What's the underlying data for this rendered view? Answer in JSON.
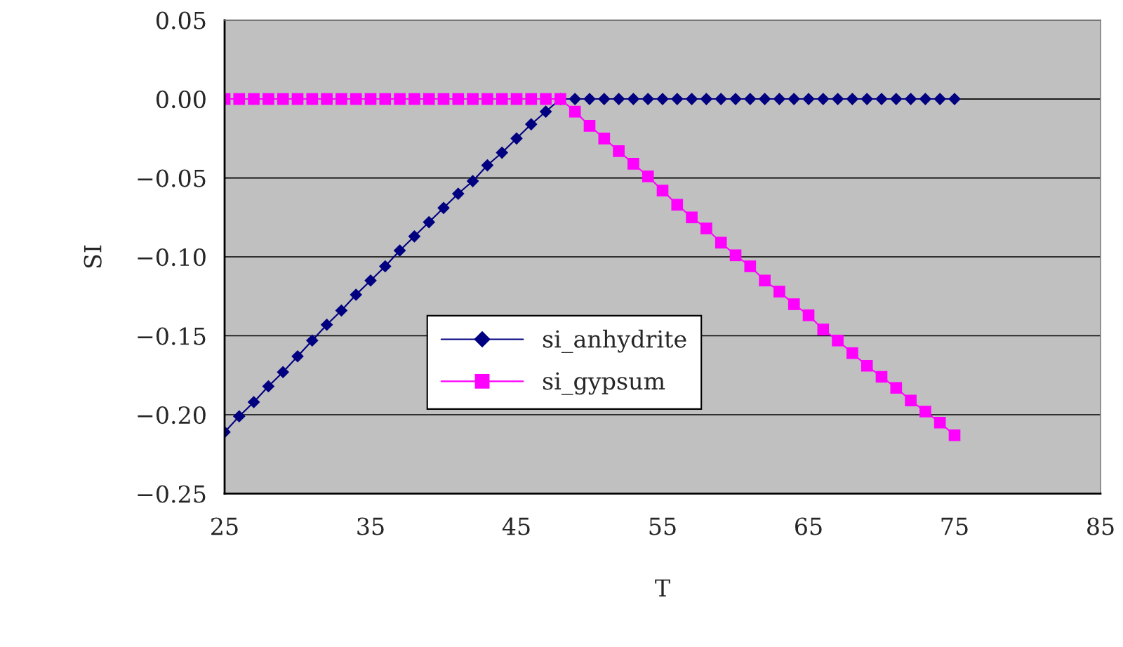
{
  "chart_data": {
    "type": "line",
    "xlabel": "T",
    "ylabel": "SI",
    "x": [
      25,
      26,
      27,
      28,
      29,
      30,
      31,
      32,
      33,
      34,
      35,
      36,
      37,
      38,
      39,
      40,
      41,
      42,
      43,
      44,
      45,
      46,
      47,
      48,
      49,
      50,
      51,
      52,
      53,
      54,
      55,
      56,
      57,
      58,
      59,
      60,
      61,
      62,
      63,
      64,
      65,
      66,
      67,
      68,
      69,
      70,
      71,
      72,
      73,
      74,
      75
    ],
    "series": [
      {
        "name": "si_anhydrite",
        "color": "#000080",
        "marker": "diamond",
        "values": [
          -0.211,
          -0.201,
          -0.192,
          -0.182,
          -0.173,
          -0.163,
          -0.153,
          -0.143,
          -0.134,
          -0.124,
          -0.115,
          -0.106,
          -0.096,
          -0.087,
          -0.078,
          -0.069,
          -0.06,
          -0.052,
          -0.042,
          -0.034,
          -0.025,
          -0.016,
          -0.008,
          0,
          0,
          0,
          0,
          0,
          0,
          0,
          0,
          0,
          0,
          0,
          0,
          0,
          0,
          0,
          0,
          0,
          0,
          0,
          0,
          0,
          0,
          0,
          0,
          0,
          0,
          0,
          0
        ]
      },
      {
        "name": "si_gypsum",
        "color": "#ff00ff",
        "marker": "square",
        "values": [
          0,
          0,
          0,
          0,
          0,
          0,
          0,
          0,
          0,
          0,
          0,
          0,
          0,
          0,
          0,
          0,
          0,
          0,
          0,
          0,
          0,
          0,
          0,
          0,
          -0.008,
          -0.017,
          -0.025,
          -0.033,
          -0.041,
          -0.049,
          -0.058,
          -0.067,
          -0.075,
          -0.082,
          -0.091,
          -0.099,
          -0.106,
          -0.115,
          -0.122,
          -0.13,
          -0.137,
          -0.146,
          -0.153,
          -0.161,
          -0.169,
          -0.176,
          -0.183,
          -0.191,
          -0.198,
          -0.205,
          -0.213
        ]
      }
    ],
    "xlim": [
      25,
      85
    ],
    "xticks": [
      25,
      35,
      45,
      55,
      65,
      75,
      85
    ],
    "ylim": [
      -0.25,
      0.05
    ],
    "yticks": [
      0.05,
      {
        "value": 0,
        "label": "0.00"
      },
      {
        "value": -0.05,
        "label": "−0.05"
      },
      {
        "value": -0.1,
        "label": "−0.10"
      },
      {
        "value": -0.15,
        "label": "−0.15"
      },
      {
        "value": -0.2,
        "label": "−0.20"
      },
      {
        "value": -0.25,
        "label": "−0.25"
      }
    ],
    "grid": "y",
    "legend": "bottom",
    "line_style": "solid"
  }
}
